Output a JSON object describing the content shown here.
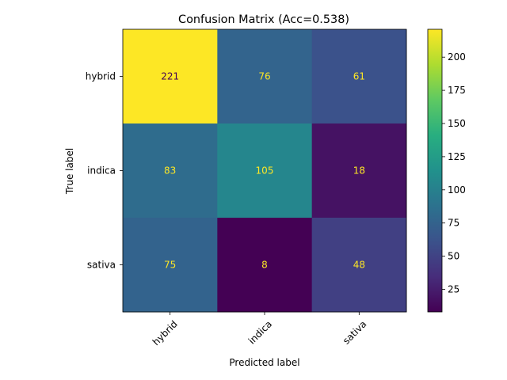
{
  "chart_data": {
    "type": "heatmap",
    "title": "Confusion Matrix (Acc=0.538)",
    "xlabel": "Predicted label",
    "ylabel": "True label",
    "x_categories": [
      "hybrid",
      "indica",
      "sativa"
    ],
    "y_categories": [
      "hybrid",
      "indica",
      "sativa"
    ],
    "values": [
      [
        221,
        76,
        61
      ],
      [
        83,
        105,
        18
      ],
      [
        75,
        8,
        48
      ]
    ],
    "colormap": "viridis",
    "color_range": [
      8,
      221
    ],
    "colorbar_ticks": [
      25,
      50,
      75,
      100,
      125,
      150,
      175,
      200
    ],
    "x_tick_rotation": 45,
    "grid": false
  }
}
